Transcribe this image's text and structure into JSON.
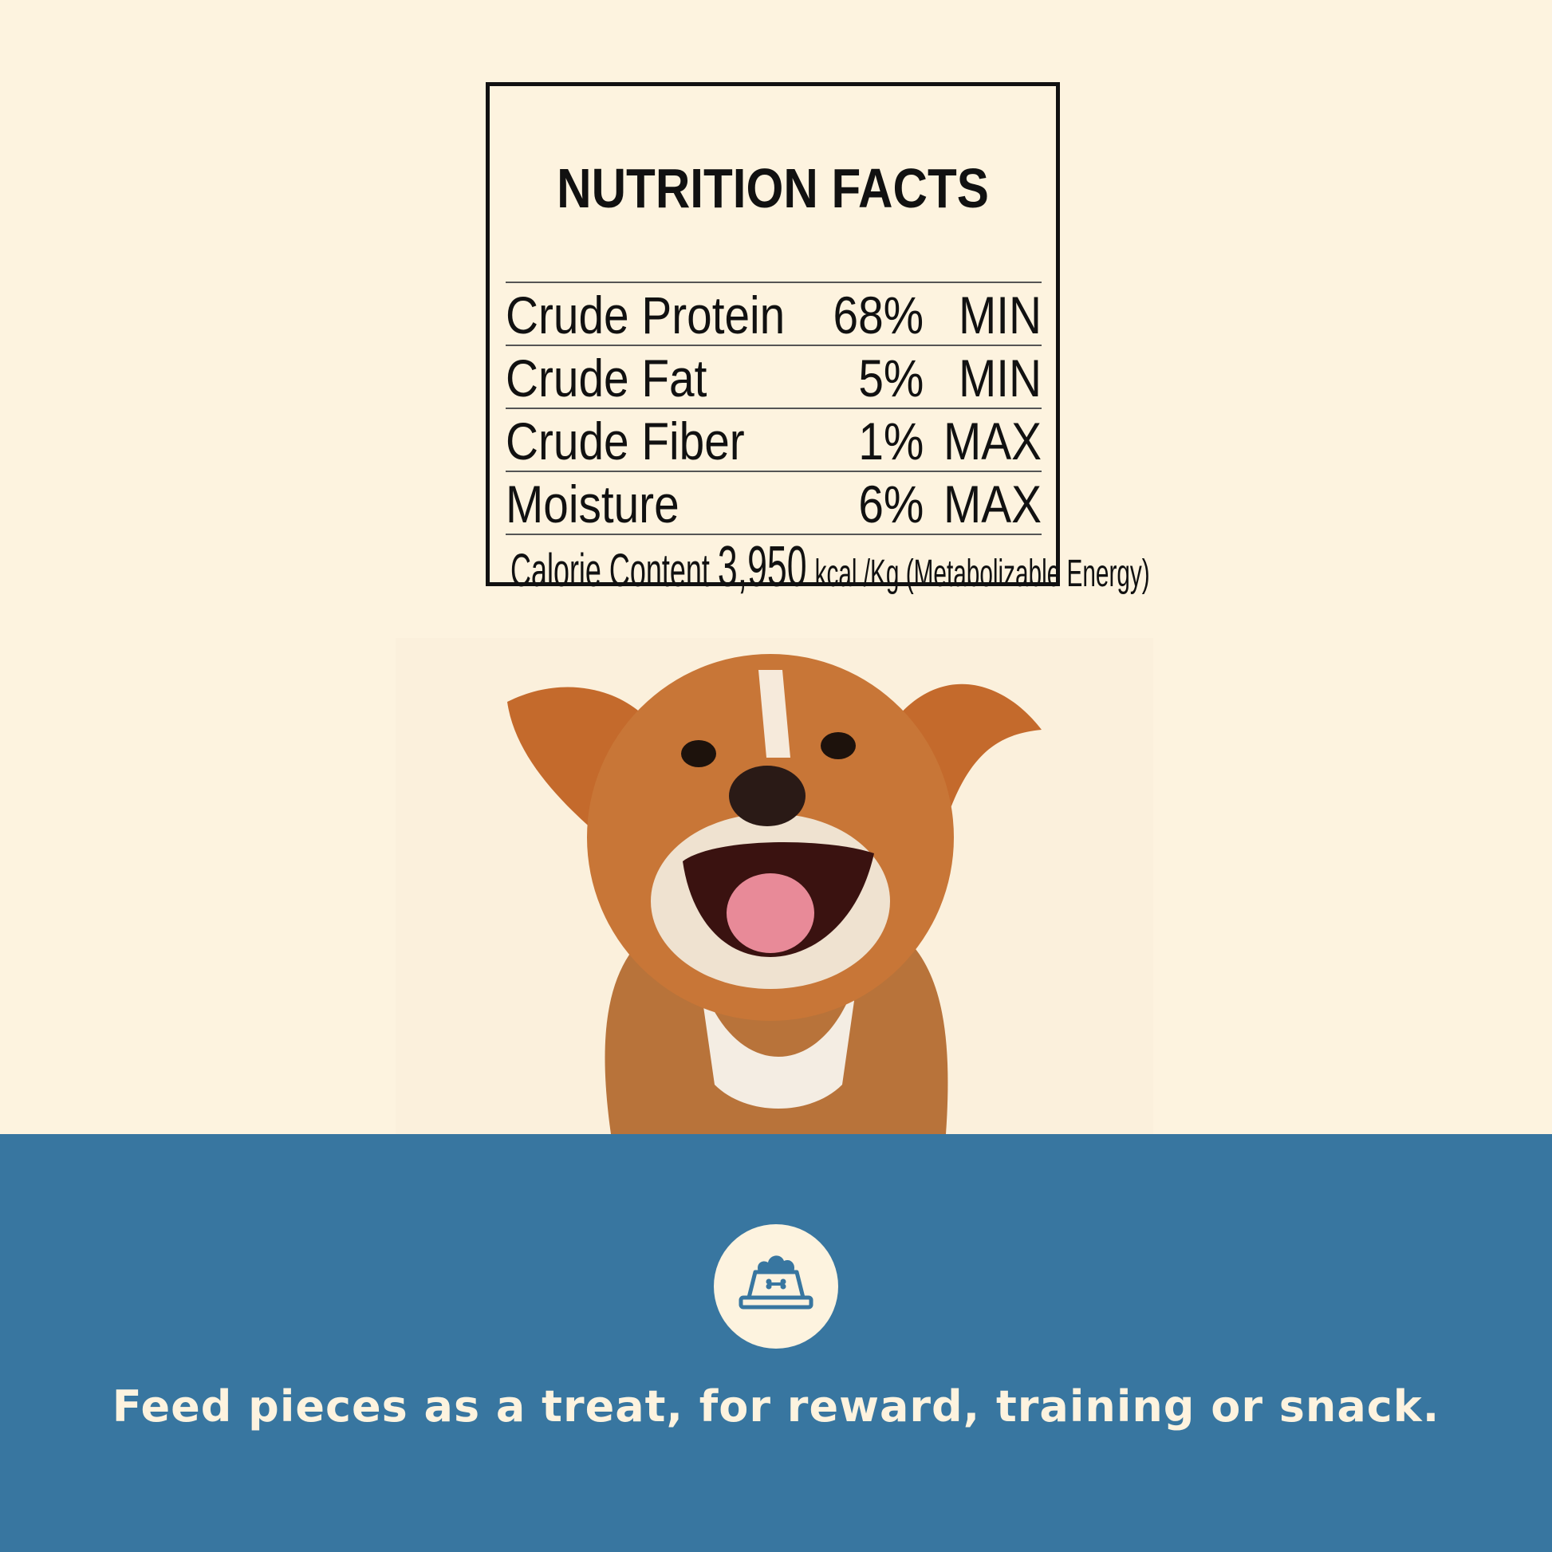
{
  "nutrition": {
    "title": "NUTRITION FACTS",
    "rows": [
      {
        "label": "Crude Protein",
        "value": "68%",
        "unit": "MIN"
      },
      {
        "label": "Crude Fat",
        "value": "5%",
        "unit": "MIN"
      },
      {
        "label": "Crude Fiber",
        "value": "1%",
        "unit": "MAX"
      },
      {
        "label": "Moisture",
        "value": "6%",
        "unit": "MAX"
      }
    ],
    "calorie": {
      "label": "Calorie Content",
      "value": "3,950",
      "unit": "kcal /Kg (Metabolizable Energy)"
    }
  },
  "photo": {
    "subject": "smiling puppy"
  },
  "footer": {
    "icon": "dog-food-bowl-icon",
    "tagline": "Feed pieces as a treat, for reward, training or snack."
  },
  "colors": {
    "background": "#fdf3df",
    "band": "#3876a0",
    "text": "#111111"
  }
}
